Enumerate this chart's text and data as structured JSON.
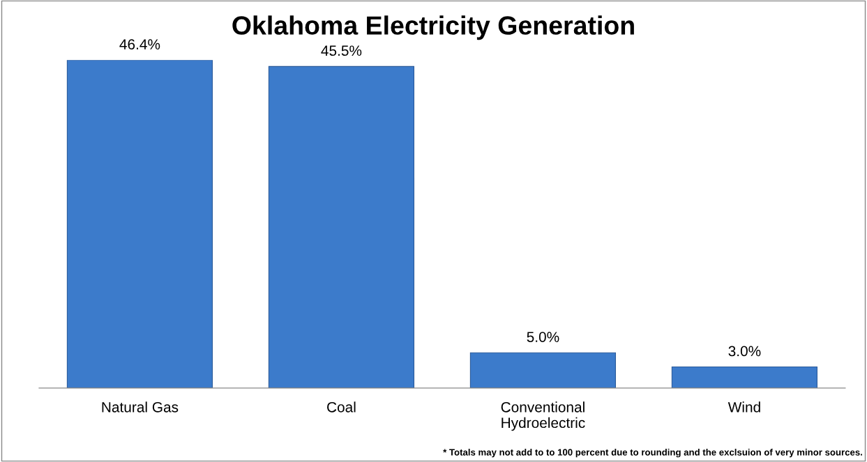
{
  "chart_data": {
    "type": "bar",
    "title": "Oklahoma Electricity Generation",
    "categories": [
      "Natural Gas",
      "Coal",
      "Conventional Hydroelectric",
      "Wind"
    ],
    "values": [
      46.4,
      45.5,
      5.0,
      3.0
    ],
    "value_labels": [
      "46.4%",
      "45.5%",
      "5.0%",
      "3.0%"
    ],
    "color": "#3c7bcb",
    "grid": false,
    "legend": false,
    "tick_labels": "x",
    "annotations": [
      "* Totals may not add to to 100 percent due to rounding and the exclsuion of very minor sources."
    ]
  }
}
